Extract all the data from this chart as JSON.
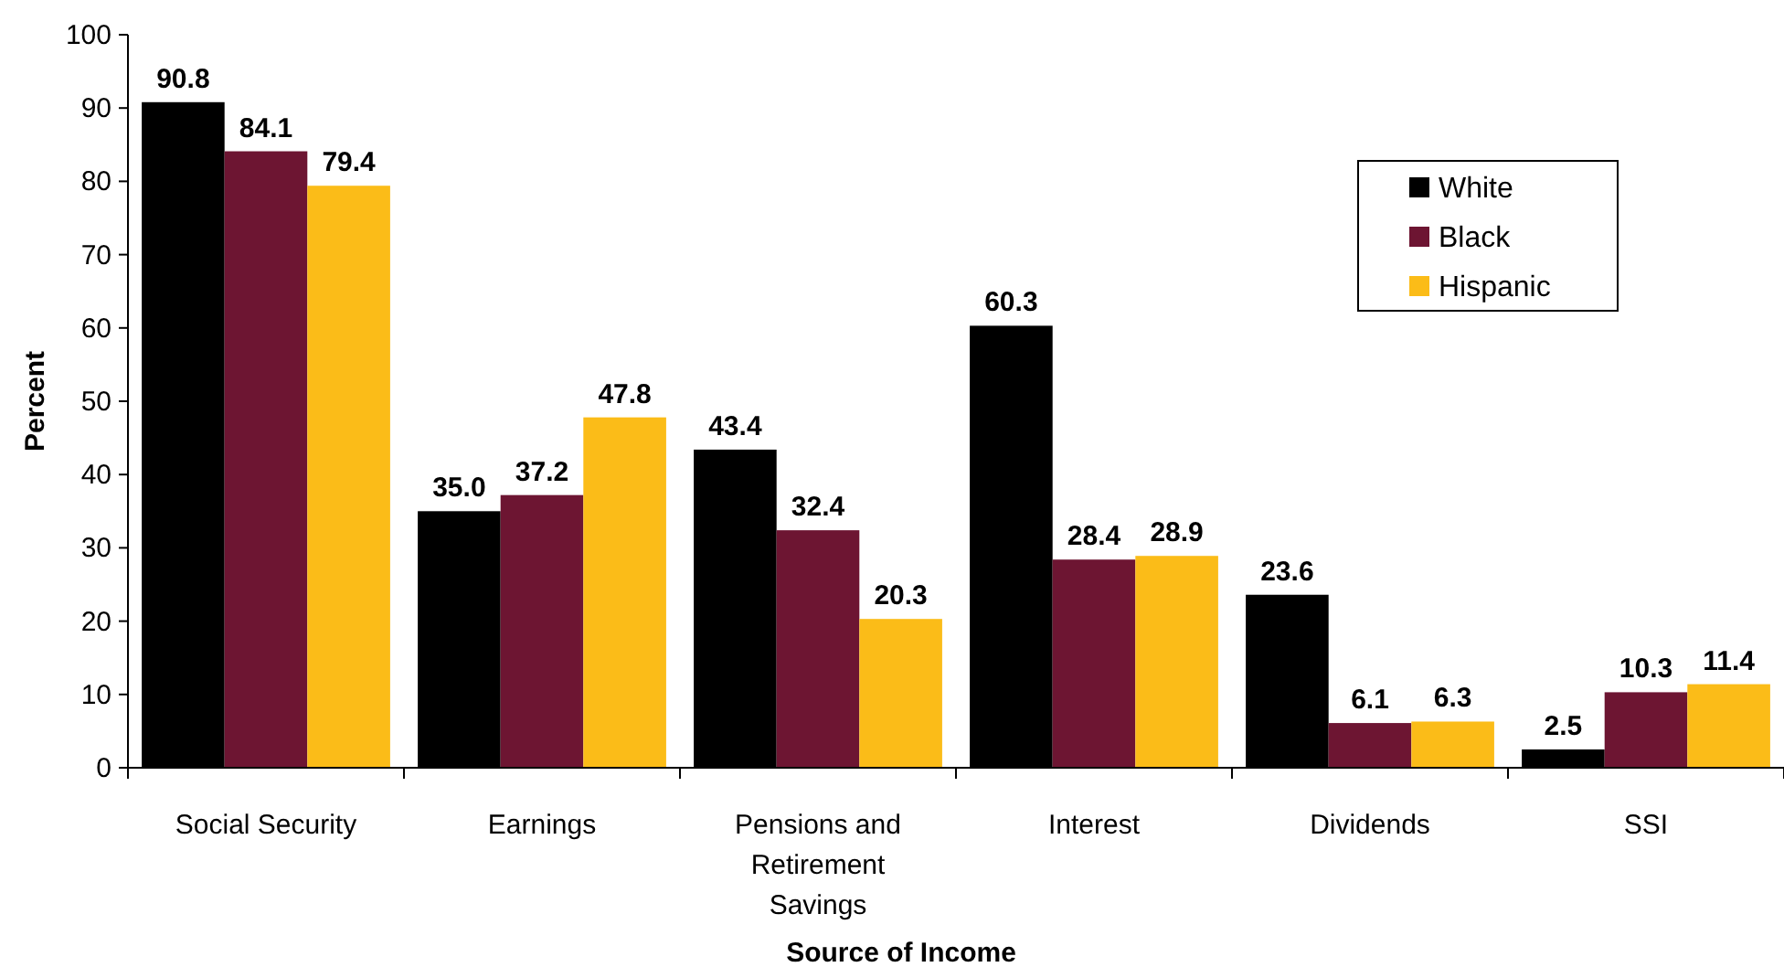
{
  "chart_data": {
    "type": "bar",
    "xlabel": "Source of Income",
    "ylabel": "Percent",
    "categories": [
      "Social Security",
      "Earnings",
      "Pensions and Retirement Savings",
      "Interest",
      "Dividends",
      "SSI"
    ],
    "series": [
      {
        "name": "White",
        "color": "#000000",
        "values": [
          90.8,
          35.0,
          43.4,
          60.3,
          23.6,
          2.5
        ],
        "value_labels": [
          "90.8",
          "35.0",
          "43.4",
          "60.3",
          "23.6",
          "2.5"
        ]
      },
      {
        "name": "Black",
        "color": "#6d1532",
        "values": [
          84.1,
          37.2,
          32.4,
          28.4,
          6.1,
          10.3
        ],
        "value_labels": [
          "84.1",
          "37.2",
          "32.4",
          "28.4",
          "6.1",
          "10.3"
        ]
      },
      {
        "name": "Hispanic",
        "color": "#fbbc18",
        "values": [
          79.4,
          47.8,
          20.3,
          28.9,
          6.3,
          11.4
        ],
        "value_labels": [
          "79.4",
          "47.8",
          "20.3",
          "28.9",
          "6.3",
          "11.4"
        ]
      }
    ],
    "ylim": [
      0,
      100
    ],
    "yticks": [
      0,
      10,
      20,
      30,
      40,
      50,
      60,
      70,
      80,
      90,
      100
    ],
    "grid": false,
    "legend": "top right"
  }
}
